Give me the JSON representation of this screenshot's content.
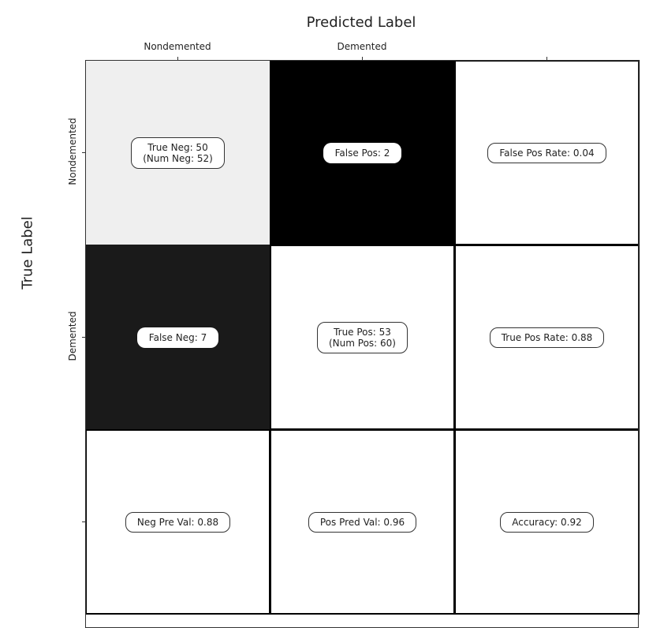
{
  "chart_data": {
    "type": "heatmap",
    "title": "Predicted Label",
    "xlabel": "Predicted Label",
    "ylabel": "True Label",
    "x_tick_labels": [
      "Nondemented",
      "Demented",
      ""
    ],
    "y_tick_labels": [
      "Nondemented",
      "Demented",
      ""
    ],
    "colormap": "gray_r",
    "cells": [
      [
        {
          "text": "True Neg: 50\n(Num Neg: 52)",
          "value": 50,
          "color": "#efefef"
        },
        {
          "text": "False Pos: 2",
          "value": 2,
          "color": "#000000"
        },
        {
          "text": "False Pos Rate: 0.04",
          "value": 0.04,
          "color": "#ffffff"
        }
      ],
      [
        {
          "text": "False Neg: 7",
          "value": 7,
          "color": "#1a1a1a"
        },
        {
          "text": "True Pos: 53\n(Num Pos: 60)",
          "value": 53,
          "color": "#ffffff"
        },
        {
          "text": "True Pos Rate: 0.88",
          "value": 0.88,
          "color": "#ffffff"
        }
      ],
      [
        {
          "text": "Neg Pre Val: 0.88",
          "value": 0.88,
          "color": "#ffffff"
        },
        {
          "text": "Pos Pred Val: 0.96",
          "value": 0.96,
          "color": "#ffffff"
        },
        {
          "text": "Accuracy: 0.92",
          "value": 0.92,
          "color": "#ffffff"
        }
      ]
    ]
  }
}
